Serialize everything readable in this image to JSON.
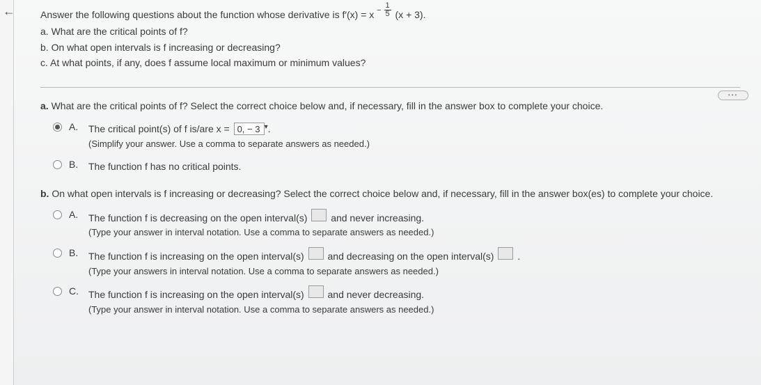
{
  "left_arrow": "←",
  "intro": {
    "lead": "Answer the following questions about the function whose derivative is f′(x) = x",
    "exp_neg": "−",
    "exp_num": "1",
    "exp_den": "5",
    "tail": "(x + 3).",
    "a": "a. What are the critical points of f?",
    "b": "b. On what open intervals is f increasing or decreasing?",
    "c": "c. At what points, if any, does f assume local maximum or minimum values?"
  },
  "pill": "•••",
  "partA": {
    "prompt_bold": "a.",
    "prompt": " What are the critical points of f? Select the correct choice below and, if necessary, fill in the answer box to complete your choice.",
    "A": {
      "letter": "A.",
      "text_pre": "The critical point(s) of f is/are x = ",
      "answer": "0, − 3",
      "caret": "▾",
      "text_post": ".",
      "hint": "(Simplify your answer. Use a comma to separate answers as needed.)"
    },
    "B": {
      "letter": "B.",
      "text": "The function f has no critical points."
    }
  },
  "partB": {
    "prompt_bold": "b.",
    "prompt": " On what open intervals is f increasing or decreasing? Select the correct choice below and, if necessary, fill in the answer box(es) to complete your choice.",
    "A": {
      "letter": "A.",
      "pre": "The function f is decreasing on the open interval(s) ",
      "post": " and never increasing.",
      "hint": "(Type your answer in interval notation. Use a comma to separate answers as needed.)"
    },
    "B": {
      "letter": "B.",
      "pre": "The function f is increasing on the open interval(s) ",
      "mid": " and decreasing on the open interval(s) ",
      "post": " .",
      "hint": "(Type your answers in interval notation. Use a comma to separate answers as needed.)"
    },
    "C": {
      "letter": "C.",
      "pre": "The function f is increasing on the open interval(s) ",
      "post": " and never decreasing.",
      "hint": "(Type your answer in interval notation. Use a comma to separate answers as needed.)"
    }
  }
}
